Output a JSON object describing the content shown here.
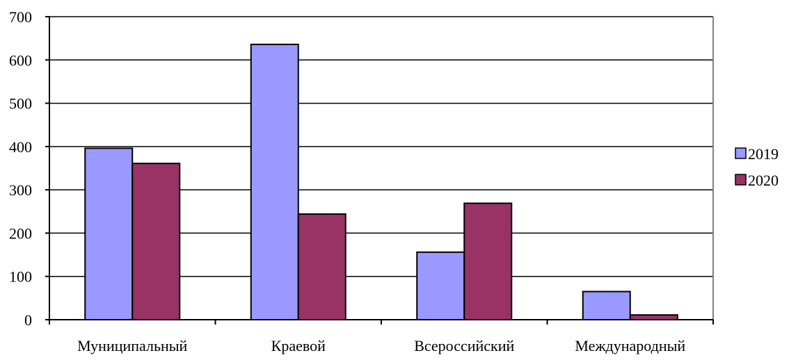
{
  "chart_data": {
    "type": "bar",
    "title": "",
    "xlabel": "",
    "ylabel": "",
    "categories": [
      "Муниципальный",
      "Краевой",
      "Всероссийский",
      "Международный"
    ],
    "series": [
      {
        "name": "2019",
        "values": [
          396,
          636,
          156,
          65
        ],
        "color": "#9999ff"
      },
      {
        "name": "2020",
        "values": [
          361,
          244,
          269,
          11
        ],
        "color": "#993366"
      }
    ],
    "ylim": [
      0,
      700
    ],
    "yticks": [
      0,
      100,
      200,
      300,
      400,
      500,
      600,
      700
    ],
    "grid": true,
    "legend_position": "right"
  }
}
